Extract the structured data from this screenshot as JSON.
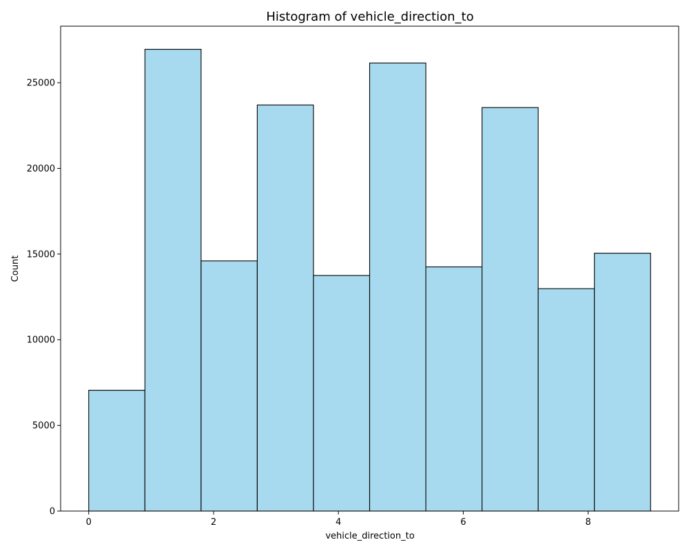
{
  "chart_data": {
    "type": "bar",
    "title": "Histogram of vehicle_direction_to",
    "xlabel": "vehicle_direction_to",
    "ylabel": "Count",
    "bin_edges": [
      0,
      0.9,
      1.8,
      2.7,
      3.6,
      4.5,
      5.4,
      6.3,
      7.2,
      8.1,
      9.0
    ],
    "values": [
      7050,
      26950,
      14600,
      23700,
      13750,
      26150,
      14250,
      23550,
      12980,
      15050
    ],
    "xlim": [
      -0.45,
      9.45
    ],
    "ylim": [
      0,
      28300
    ],
    "xticks": [
      0,
      2,
      4,
      6,
      8
    ],
    "xtick_labels": [
      "0",
      "2",
      "4",
      "6",
      "8"
    ],
    "yticks": [
      0,
      5000,
      10000,
      15000,
      20000,
      25000
    ],
    "ytick_labels": [
      "0",
      "5000",
      "10000",
      "15000",
      "20000",
      "25000"
    ],
    "bar_color": "#a8daef",
    "edge_color": "#000000",
    "grid": false,
    "legend": false
  }
}
